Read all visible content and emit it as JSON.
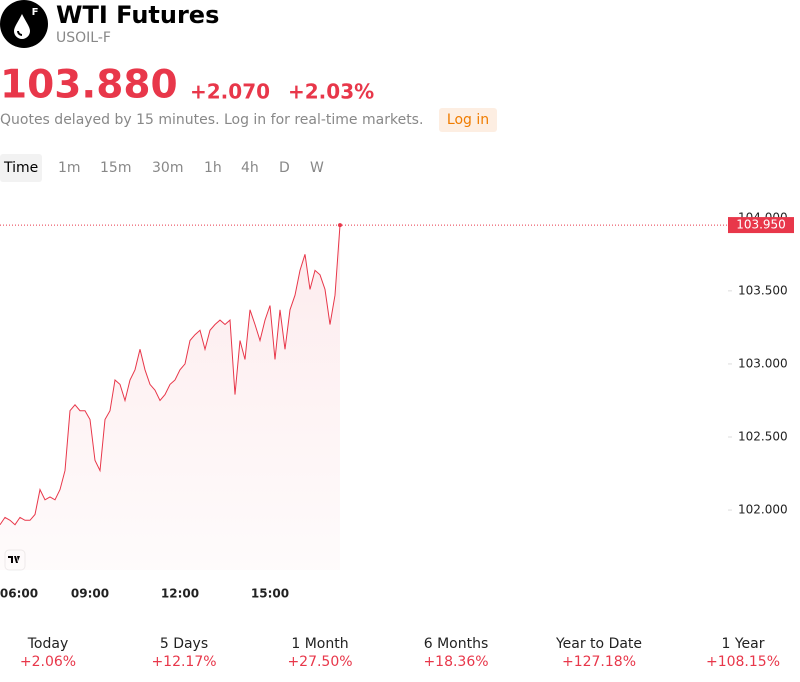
{
  "header": {
    "title": "WTI Futures",
    "symbol": "USOIL-F",
    "icon_letter": "F"
  },
  "quote": {
    "price": "103.880",
    "change": "+2.070",
    "change_pct": "+2.03%",
    "note": "Quotes delayed by 15 minutes. Log in for real-time markets.",
    "login": "Log in"
  },
  "tabs": [
    "Time",
    "1m",
    "15m",
    "30m",
    "1h",
    "4h",
    "D",
    "W"
  ],
  "chart_data": {
    "type": "line",
    "color": "#e8374a",
    "x": [
      360,
      370,
      380,
      390,
      400,
      410,
      420,
      430,
      440,
      450,
      460,
      470,
      480,
      490,
      500,
      510,
      520,
      530,
      540,
      550,
      560,
      570,
      580,
      590,
      600,
      610,
      620,
      630,
      640,
      650,
      660,
      670,
      680,
      690,
      700,
      710,
      720,
      730,
      740,
      750,
      760,
      770,
      780,
      790,
      800,
      810,
      820,
      830,
      840,
      850,
      860,
      870,
      880,
      890,
      900,
      910,
      920,
      930,
      940,
      950,
      960,
      970,
      980,
      990,
      1000,
      1010,
      1020,
      1030,
      1040
    ],
    "values": [
      101.9,
      101.95,
      101.93,
      101.9,
      101.95,
      101.93,
      101.93,
      101.97,
      102.14,
      102.07,
      102.09,
      102.07,
      102.14,
      102.27,
      102.68,
      102.72,
      102.68,
      102.68,
      102.62,
      102.34,
      102.27,
      102.62,
      102.68,
      102.89,
      102.86,
      102.75,
      102.89,
      102.96,
      103.1,
      102.96,
      102.86,
      102.82,
      102.75,
      102.79,
      102.86,
      102.89,
      102.96,
      103.0,
      103.16,
      103.2,
      103.23,
      103.1,
      103.23,
      103.27,
      103.3,
      103.27,
      103.3,
      102.79,
      103.16,
      103.03,
      103.37,
      103.27,
      103.16,
      103.3,
      103.4,
      103.03,
      103.37,
      103.1,
      103.37,
      103.47,
      103.64,
      103.75,
      103.51,
      103.64,
      103.61,
      103.51,
      103.27,
      103.47,
      103.95
    ],
    "last_price": {
      "value": 103.95,
      "label": "103.950"
    },
    "xlim": [
      360,
      1816
    ],
    "xticks": [
      {
        "value": 360,
        "label": "06:00"
      },
      {
        "value": 540,
        "label": "09:00"
      },
      {
        "value": 720,
        "label": "12:00"
      },
      {
        "value": 900,
        "label": "15:00"
      }
    ],
    "ylim": [
      101.59,
      104.19
    ],
    "yticks": [
      {
        "value": 102,
        "label": "102.000"
      },
      {
        "value": 102.5,
        "label": "102.500"
      },
      {
        "value": 103,
        "label": "103.000"
      },
      {
        "value": 103.5,
        "label": "103.500"
      },
      {
        "value": 104,
        "label": "104.000"
      }
    ]
  },
  "performance": [
    {
      "period": "Today",
      "change": "+2.06%"
    },
    {
      "period": "5 Days",
      "change": "+12.17%"
    },
    {
      "period": "1 Month",
      "change": "+27.50%"
    },
    {
      "period": "6 Months",
      "change": "+18.36%"
    },
    {
      "period": "Year to Date",
      "change": "+127.18%"
    },
    {
      "period": "1 Year",
      "change": "+108.15%"
    }
  ]
}
